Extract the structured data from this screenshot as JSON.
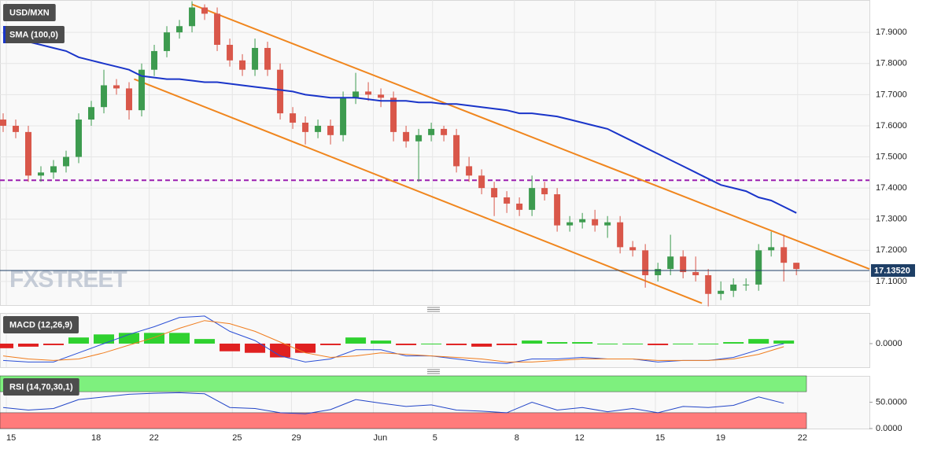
{
  "chart_data": [
    {
      "type": "candlestick",
      "title": "USD/MXN",
      "watermark": "FXSTREET",
      "xlim": [
        -0.25,
        68.8
      ],
      "ylim": [
        17.024,
        18.004
      ],
      "yticks": [
        {
          "value": 17.1,
          "label": "17.1000"
        },
        {
          "value": 17.2,
          "label": "17.2000"
        },
        {
          "value": 17.3,
          "label": "17.3000"
        },
        {
          "value": 17.4,
          "label": "17.4000"
        },
        {
          "value": 17.5,
          "label": "17.5000"
        },
        {
          "value": 17.6,
          "label": "17.6000"
        },
        {
          "value": 17.7,
          "label": "17.7000"
        },
        {
          "value": 17.8,
          "label": "17.8000"
        },
        {
          "value": 17.9,
          "label": "17.9000"
        }
      ],
      "grid": true,
      "up_color": "#3d9b4f",
      "down_color": "#d9574a",
      "open": [
        17.62,
        17.6,
        17.58,
        17.44,
        17.45,
        17.47,
        17.5,
        17.62,
        17.66,
        17.73,
        17.72,
        17.65,
        17.78,
        17.84,
        17.9,
        17.92,
        17.98,
        17.96,
        17.86,
        17.81,
        17.78,
        17.85,
        17.78,
        17.64,
        17.61,
        17.58,
        17.6,
        17.57,
        17.69,
        17.71,
        17.7,
        17.69,
        17.58,
        17.55,
        17.57,
        17.59,
        17.57,
        17.47,
        17.44,
        17.4,
        17.37,
        17.35,
        17.33,
        17.4,
        17.38,
        17.28,
        17.29,
        17.3,
        17.28,
        17.29,
        17.21,
        17.2,
        17.12,
        17.14,
        17.18,
        17.13,
        17.12,
        17.06,
        17.07,
        17.09,
        17.09,
        17.2,
        17.21,
        17.16
      ],
      "high": [
        17.64,
        17.62,
        17.6,
        17.47,
        17.49,
        17.52,
        17.64,
        17.68,
        17.78,
        17.75,
        17.74,
        17.8,
        17.86,
        17.92,
        17.94,
        18.0,
        17.99,
        17.98,
        17.88,
        17.83,
        17.88,
        17.87,
        17.8,
        17.66,
        17.63,
        17.62,
        17.62,
        17.71,
        17.77,
        17.74,
        17.72,
        17.71,
        17.6,
        17.59,
        17.61,
        17.6,
        17.59,
        17.5,
        17.46,
        17.42,
        17.39,
        17.37,
        17.44,
        17.42,
        17.4,
        17.31,
        17.32,
        17.33,
        17.31,
        17.31,
        17.23,
        17.22,
        17.16,
        17.25,
        17.2,
        17.18,
        17.14,
        17.1,
        17.11,
        17.11,
        17.22,
        17.26,
        17.25,
        17.16
      ],
      "low": [
        17.58,
        17.56,
        17.42,
        17.42,
        17.43,
        17.45,
        17.48,
        17.6,
        17.64,
        17.7,
        17.62,
        17.63,
        17.76,
        17.82,
        17.88,
        17.9,
        17.94,
        17.84,
        17.79,
        17.76,
        17.76,
        17.76,
        17.62,
        17.59,
        17.54,
        17.56,
        17.54,
        17.55,
        17.67,
        17.68,
        17.66,
        17.55,
        17.53,
        17.42,
        17.55,
        17.55,
        17.45,
        17.42,
        17.38,
        17.31,
        17.32,
        17.31,
        17.31,
        17.36,
        17.26,
        17.26,
        17.27,
        17.26,
        17.24,
        17.19,
        17.18,
        17.08,
        17.1,
        17.12,
        17.11,
        17.1,
        17.02,
        17.04,
        17.05,
        17.07,
        17.07,
        17.18,
        17.1,
        17.12
      ],
      "close": [
        17.6,
        17.58,
        17.44,
        17.45,
        17.47,
        17.5,
        17.62,
        17.66,
        17.73,
        17.72,
        17.65,
        17.78,
        17.84,
        17.9,
        17.92,
        17.98,
        17.96,
        17.86,
        17.81,
        17.78,
        17.85,
        17.78,
        17.64,
        17.61,
        17.58,
        17.6,
        17.57,
        17.69,
        17.71,
        17.7,
        17.69,
        17.58,
        17.55,
        17.57,
        17.59,
        17.57,
        17.47,
        17.44,
        17.4,
        17.37,
        17.35,
        17.33,
        17.4,
        17.38,
        17.28,
        17.29,
        17.3,
        17.28,
        17.29,
        17.21,
        17.2,
        17.12,
        17.14,
        17.18,
        17.13,
        17.12,
        17.06,
        17.07,
        17.09,
        17.09,
        17.2,
        17.21,
        17.16,
        17.14
      ],
      "series": [
        {
          "name": "SMA (100,0)",
          "color": "#1a35c9",
          "values": [
            17.9,
            17.88,
            17.87,
            17.86,
            17.85,
            17.84,
            17.82,
            17.81,
            17.8,
            17.79,
            17.78,
            17.76,
            17.755,
            17.75,
            17.75,
            17.745,
            17.74,
            17.74,
            17.735,
            17.73,
            17.725,
            17.72,
            17.715,
            17.71,
            17.7,
            17.695,
            17.69,
            17.69,
            17.69,
            17.685,
            17.68,
            17.68,
            17.68,
            17.675,
            17.675,
            17.67,
            17.67,
            17.665,
            17.66,
            17.655,
            17.65,
            17.64,
            17.64,
            17.635,
            17.63,
            17.62,
            17.61,
            17.6,
            17.59,
            17.57,
            17.55,
            17.53,
            17.51,
            17.49,
            17.47,
            17.45,
            17.43,
            17.41,
            17.4,
            17.39,
            17.37,
            17.36,
            17.34,
            17.32
          ]
        }
      ],
      "trendlines": [
        {
          "x": [
            15,
            68.8
          ],
          "y": [
            17.99,
            17.14
          ],
          "color": "#f0861e"
        },
        {
          "x": [
            10.4,
            55.5
          ],
          "y": [
            17.75,
            17.03
          ],
          "color": "#f0861e"
        }
      ],
      "level": {
        "value": 17.425,
        "color": "#9b1fb0"
      },
      "last": {
        "value": 17.1352,
        "label": "17.13520",
        "color": "#1e3f66"
      }
    },
    {
      "type": "macd",
      "title": "MACD (12,26,9)",
      "xlim": [
        -0.25,
        68.8
      ],
      "ylim": [
        -0.077,
        0.1
      ],
      "yticks": [
        {
          "value": 0,
          "label": "0.0000"
        }
      ],
      "x": [
        0,
        2,
        4,
        6,
        8,
        10,
        12,
        14,
        16,
        18,
        20,
        22,
        24,
        26,
        28,
        30,
        32,
        34,
        36,
        38,
        40,
        42,
        44,
        46,
        48,
        50,
        52,
        54,
        56,
        58,
        60,
        62
      ],
      "histogram": {
        "up_color": "#2fd12f",
        "down_color": "#e02020",
        "values": [
          -0.015,
          -0.01,
          -0.005,
          0.02,
          0.03,
          0.035,
          0.035,
          0.035,
          0.015,
          -0.025,
          -0.03,
          -0.045,
          -0.03,
          -0.005,
          0.02,
          0.01,
          -0.005,
          0.0,
          -0.005,
          -0.01,
          -0.005,
          0.01,
          0.005,
          0.005,
          0.0,
          0.0,
          -0.005,
          0.0,
          0.0,
          0.005,
          0.015,
          0.01
        ]
      },
      "series": [
        {
          "color": "#2b4fd6",
          "values": [
            -0.055,
            -0.06,
            -0.06,
            -0.03,
            0.0,
            0.03,
            0.055,
            0.085,
            0.09,
            0.04,
            0.01,
            -0.04,
            -0.06,
            -0.05,
            -0.02,
            -0.02,
            -0.04,
            -0.04,
            -0.05,
            -0.06,
            -0.065,
            -0.05,
            -0.05,
            -0.045,
            -0.05,
            -0.05,
            -0.06,
            -0.055,
            -0.055,
            -0.045,
            -0.02,
            0.0
          ]
        },
        {
          "color": "#f07d1e",
          "values": [
            -0.04,
            -0.05,
            -0.055,
            -0.05,
            -0.03,
            -0.005,
            0.02,
            0.05,
            0.075,
            0.065,
            0.04,
            0.005,
            -0.03,
            -0.045,
            -0.04,
            -0.03,
            -0.035,
            -0.04,
            -0.045,
            -0.05,
            -0.06,
            -0.06,
            -0.055,
            -0.05,
            -0.05,
            -0.05,
            -0.055,
            -0.055,
            -0.055,
            -0.05,
            -0.035,
            -0.01
          ]
        }
      ]
    },
    {
      "type": "line",
      "title": "RSI (14,70,30,1)",
      "xlim": [
        -0.25,
        68.8
      ],
      "ylim": [
        0,
        100
      ],
      "yticks": [
        {
          "value": 50,
          "label": "50.0000"
        },
        {
          "value": 0,
          "label": "0.0000"
        }
      ],
      "overbought": 70,
      "oversold": 30,
      "overbought_color": "#7ef07e",
      "oversold_color": "#ff7b7b",
      "xticks": [
        {
          "value": 0.25,
          "label": "15"
        },
        {
          "value": 7,
          "label": "18"
        },
        {
          "value": 11.6,
          "label": "22"
        },
        {
          "value": 18.2,
          "label": "25"
        },
        {
          "value": 22.9,
          "label": "29"
        },
        {
          "value": 29.4,
          "label": "Jun"
        },
        {
          "value": 34.1,
          "label": "5"
        },
        {
          "value": 40.6,
          "label": "8"
        },
        {
          "value": 45.4,
          "label": "12"
        },
        {
          "value": 51.8,
          "label": "15"
        },
        {
          "value": 56.6,
          "label": "19"
        },
        {
          "value": 63.1,
          "label": "22"
        }
      ],
      "x": [
        0,
        2,
        4,
        6,
        8,
        10,
        12,
        14,
        16,
        18,
        20,
        22,
        24,
        26,
        28,
        30,
        32,
        34,
        36,
        38,
        40,
        42,
        44,
        46,
        48,
        50,
        52,
        54,
        56,
        58,
        60,
        62
      ],
      "series": [
        {
          "color": "#2346c8",
          "values": [
            40,
            35,
            38,
            55,
            60,
            65,
            67,
            68,
            66,
            40,
            38,
            30,
            28,
            36,
            55,
            48,
            42,
            45,
            35,
            33,
            30,
            50,
            35,
            40,
            32,
            38,
            30,
            42,
            40,
            44,
            60,
            48
          ]
        }
      ]
    }
  ]
}
